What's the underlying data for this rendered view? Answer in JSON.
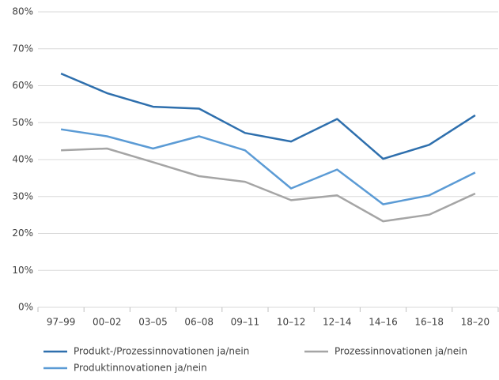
{
  "chart_data": {
    "type": "line",
    "categories": [
      "97–99",
      "00–02",
      "03–05",
      "06–08",
      "09–11",
      "10–12",
      "12–14",
      "14–16",
      "16–18",
      "18–20"
    ],
    "series": [
      {
        "name": "Produkt-/Prozessinnovationen ja/nein",
        "color": "#2e6fad",
        "values": [
          63.3,
          58,
          54.3,
          53.8,
          47.2,
          44.9,
          51,
          40.2,
          44,
          52
        ]
      },
      {
        "name": "Produktinnovationen ja/nein",
        "color": "#5b9bd5",
        "values": [
          48.2,
          46.3,
          43,
          46.3,
          42.5,
          32.2,
          37.3,
          27.9,
          30.3,
          36.5
        ]
      },
      {
        "name": "Prozessinnovationen ja/nein",
        "color": "#a5a5a5",
        "values": [
          42.5,
          43,
          39.3,
          35.5,
          34,
          29,
          30.3,
          23.3,
          25.1,
          30.8
        ]
      }
    ],
    "ylim": [
      0,
      80
    ],
    "yticks": [
      {
        "value": 0,
        "label": "0%"
      },
      {
        "value": 10,
        "label": "10%"
      },
      {
        "value": 20,
        "label": "20%"
      },
      {
        "value": 30,
        "label": "30%"
      },
      {
        "value": 40,
        "label": "40%"
      },
      {
        "value": 50,
        "label": "50%"
      },
      {
        "value": 60,
        "label": "60%"
      },
      {
        "value": 70,
        "label": "70%"
      },
      {
        "value": 80,
        "label": "80%"
      }
    ],
    "grid": true,
    "legend": "bottom"
  }
}
